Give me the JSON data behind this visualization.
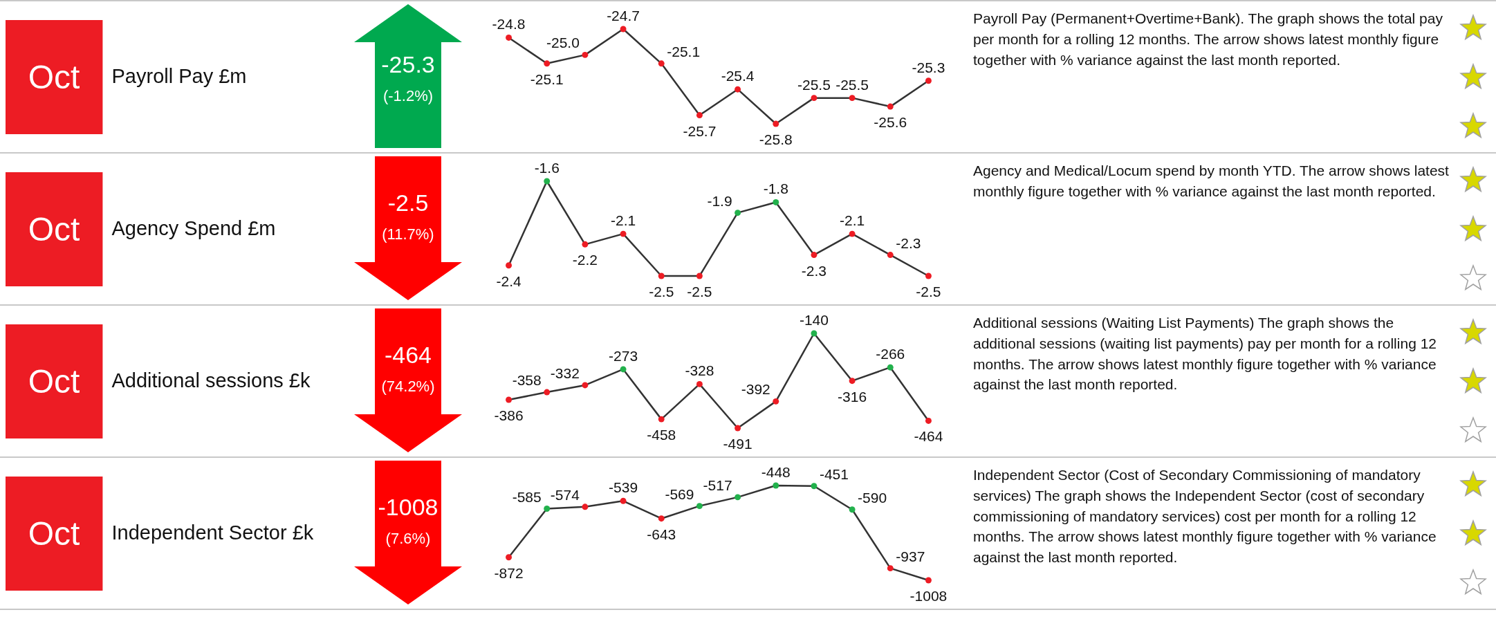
{
  "chart_data": [
    {
      "type": "line",
      "ylabel": "Payroll Pay £m",
      "categories": [
        null,
        null,
        null,
        null,
        null,
        null,
        null,
        null,
        null,
        null,
        null,
        null
      ],
      "values": [
        -24.8,
        -25.1,
        -25.0,
        -24.7,
        -25.1,
        -25.7,
        -25.4,
        -25.8,
        -25.5,
        -25.5,
        -25.6,
        -25.3
      ],
      "value_labels": [
        "-24.8",
        "-25.1",
        "-25.0",
        "-24.7",
        "-25.1",
        "-25.7",
        "-25.4",
        "-25.8",
        "-25.5",
        "-25.5",
        "-25.6",
        "-25.3"
      ],
      "color": "#333333",
      "colors": [
        "#ed1c24",
        "#ed1c24",
        "#ed1c24",
        "#ed1c24",
        "#ed1c24",
        "#ed1c24",
        "#ed1c24",
        "#ed1c24",
        "#ed1c24",
        "#ed1c24",
        "#ed1c24",
        "#ed1c24"
      ],
      "marker": "circle",
      "annotations": [
        "Oct",
        "-25.3",
        "(-1.2%)",
        "Payroll Pay (Permanent+Overtime+Bank).  The graph shows the total pay per month for a rolling 12 months.  The arrow shows latest monthly figure together with % variance against the last month reported."
      ]
    },
    {
      "type": "line",
      "ylabel": "Agency Spend £m",
      "categories": [
        null,
        null,
        null,
        null,
        null,
        null,
        null,
        null,
        null,
        null,
        null,
        null
      ],
      "values": [
        -2.4,
        -1.6,
        -2.2,
        -2.1,
        -2.5,
        -2.5,
        -1.9,
        -1.8,
        -2.3,
        -2.1,
        -2.3,
        -2.5
      ],
      "value_labels": [
        "-2.4",
        "-1.6",
        "-2.2",
        "-2.1",
        "-2.5",
        "-2.5",
        "-1.9",
        "-1.8",
        "-2.3",
        "-2.1",
        "-2.3",
        "-2.5"
      ],
      "color": "#333333",
      "colors": [
        "#ed1c24",
        "#22b14c",
        "#ed1c24",
        "#ed1c24",
        "#ed1c24",
        "#ed1c24",
        "#22b14c",
        "#22b14c",
        "#ed1c24",
        "#ed1c24",
        "#ed1c24",
        "#ed1c24"
      ],
      "marker": "circle",
      "annotations": [
        "Oct",
        "-2.5",
        "(11.7%)",
        "Agency and Medical/Locum spend by month YTD.  The arrow shows latest monthly figure together with % variance against the last month reported."
      ]
    },
    {
      "type": "line",
      "ylabel": "Additional sessions £k",
      "categories": [
        null,
        null,
        null,
        null,
        null,
        null,
        null,
        null,
        null,
        null,
        null,
        null
      ],
      "values": [
        -386,
        -358,
        -332,
        -273,
        -458,
        -328,
        -491,
        -392,
        -140,
        -316,
        -266,
        -464
      ],
      "value_labels": [
        "-386",
        "-358",
        "-332",
        "-273",
        "-458",
        "-328",
        "-491",
        "-392",
        "-140",
        "-316",
        "-266",
        "-464"
      ],
      "color": "#333333",
      "colors": [
        "#ed1c24",
        "#ed1c24",
        "#ed1c24",
        "#22b14c",
        "#ed1c24",
        "#ed1c24",
        "#ed1c24",
        "#ed1c24",
        "#22b14c",
        "#ed1c24",
        "#22b14c",
        "#ed1c24"
      ],
      "marker": "circle",
      "annotations": [
        "Oct",
        "-464",
        "(74.2%)",
        "Additional sessions (Waiting List Payments) The graph shows the additional sessions (waiting list payments) pay per month for a rolling 12 months.  The arrow shows latest monthly figure together with % variance against the last month reported."
      ]
    },
    {
      "type": "line",
      "ylabel": "Independent Sector £k",
      "categories": [
        null,
        null,
        null,
        null,
        null,
        null,
        null,
        null,
        null,
        null,
        null,
        null
      ],
      "values": [
        -872,
        -585,
        -574,
        -539,
        -643,
        -569,
        -517,
        -448,
        -451,
        -590,
        -937,
        -1008
      ],
      "value_labels": [
        "-872",
        "-585",
        "-574",
        "-539",
        "-643",
        "-569",
        "-517",
        "-448",
        "-451",
        "-590",
        "-937",
        "-1008"
      ],
      "color": "#333333",
      "colors": [
        "#ed1c24",
        "#22b14c",
        "#ed1c24",
        "#ed1c24",
        "#ed1c24",
        "#22b14c",
        "#22b14c",
        "#22b14c",
        "#22b14c",
        "#22b14c",
        "#ed1c24",
        "#ed1c24"
      ],
      "marker": "circle",
      "annotations": [
        "Oct",
        "-1008",
        "(7.6%)",
        "Independent Sector (Cost of Secondary Commissioning of mandatory services) The graph shows the Independent Sector (cost of secondary commissioning of mandatory services) cost per month for a rolling 12 months.  The arrow shows latest monthly figure together with % variance against the last month reported."
      ]
    }
  ]
}
